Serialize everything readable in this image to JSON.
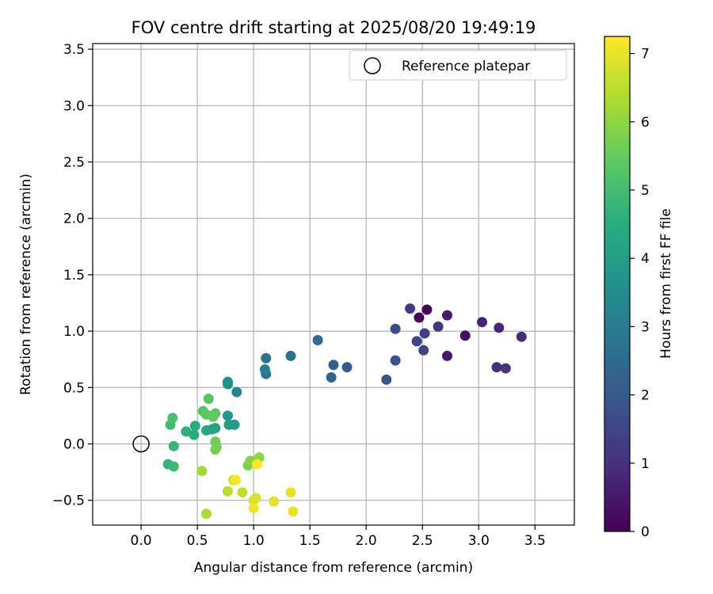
{
  "chart_data": {
    "type": "scatter",
    "title": "FOV centre drift starting at 2025/08/20 19:49:19",
    "xlabel": "Angular distance from reference (arcmin)",
    "ylabel": "Rotation from reference (arcmin)",
    "xlim": [
      -0.43,
      3.85
    ],
    "ylim": [
      -0.72,
      3.55
    ],
    "xticks": [
      "0.0",
      "0.5",
      "1.0",
      "1.5",
      "2.0",
      "2.5",
      "3.0",
      "3.5"
    ],
    "xtick_values": [
      0,
      0.5,
      1.0,
      1.5,
      2.0,
      2.5,
      3.0,
      3.5
    ],
    "yticks": [
      "−0.5",
      "0.0",
      "0.5",
      "1.0",
      "1.5",
      "2.0",
      "2.5",
      "3.0",
      "3.5"
    ],
    "ytick_values": [
      -0.5,
      0,
      0.5,
      1.0,
      1.5,
      2.0,
      2.5,
      3.0,
      3.5
    ],
    "grid": true,
    "legend": {
      "placement": "top-right",
      "entries": [
        "Reference platepar"
      ]
    },
    "reference_point": {
      "x": 0,
      "y": 0
    },
    "colorbar": {
      "label": "Hours from first FF file",
      "min": 0,
      "max": 7.25,
      "ticks": [
        "0",
        "1",
        "2",
        "3",
        "4",
        "5",
        "6",
        "7"
      ],
      "tick_values": [
        0,
        1,
        2,
        3,
        4,
        5,
        6,
        7
      ],
      "colormap": "viridis"
    },
    "points": [
      {
        "x": 2.47,
        "y": 1.12,
        "c": 0.05
      },
      {
        "x": 2.54,
        "y": 1.19,
        "c": 0.15
      },
      {
        "x": 2.88,
        "y": 0.96,
        "c": 0.25
      },
      {
        "x": 2.72,
        "y": 0.78,
        "c": 0.45
      },
      {
        "x": 2.72,
        "y": 1.14,
        "c": 0.55
      },
      {
        "x": 3.03,
        "y": 1.08,
        "c": 0.7
      },
      {
        "x": 3.18,
        "y": 1.03,
        "c": 0.8
      },
      {
        "x": 3.38,
        "y": 0.95,
        "c": 0.9
      },
      {
        "x": 3.16,
        "y": 0.68,
        "c": 1.0
      },
      {
        "x": 3.24,
        "y": 0.67,
        "c": 1.1
      },
      {
        "x": 2.64,
        "y": 1.04,
        "c": 1.15
      },
      {
        "x": 2.39,
        "y": 1.2,
        "c": 1.25
      },
      {
        "x": 2.52,
        "y": 0.98,
        "c": 1.35
      },
      {
        "x": 2.45,
        "y": 0.91,
        "c": 1.45
      },
      {
        "x": 2.51,
        "y": 0.83,
        "c": 1.55
      },
      {
        "x": 2.26,
        "y": 1.02,
        "c": 1.7
      },
      {
        "x": 2.26,
        "y": 0.74,
        "c": 1.8
      },
      {
        "x": 2.18,
        "y": 0.57,
        "c": 1.9
      },
      {
        "x": 1.83,
        "y": 0.68,
        "c": 2.1
      },
      {
        "x": 1.71,
        "y": 0.7,
        "c": 2.2
      },
      {
        "x": 1.69,
        "y": 0.59,
        "c": 2.3
      },
      {
        "x": 1.57,
        "y": 0.92,
        "c": 2.5
      },
      {
        "x": 1.33,
        "y": 0.78,
        "c": 2.6
      },
      {
        "x": 1.11,
        "y": 0.76,
        "c": 2.8
      },
      {
        "x": 1.11,
        "y": 0.62,
        "c": 2.9
      },
      {
        "x": 1.1,
        "y": 0.66,
        "c": 3.0
      },
      {
        "x": 0.85,
        "y": 0.46,
        "c": 3.3
      },
      {
        "x": 0.77,
        "y": 0.55,
        "c": 3.6
      },
      {
        "x": 0.77,
        "y": 0.53,
        "c": 3.7
      },
      {
        "x": 0.77,
        "y": 0.25,
        "c": 3.8
      },
      {
        "x": 0.83,
        "y": 0.17,
        "c": 3.9
      },
      {
        "x": 0.78,
        "y": 0.17,
        "c": 4.0
      },
      {
        "x": 0.66,
        "y": 0.14,
        "c": 4.1
      },
      {
        "x": 0.63,
        "y": 0.13,
        "c": 4.2
      },
      {
        "x": 0.58,
        "y": 0.12,
        "c": 4.3
      },
      {
        "x": 0.48,
        "y": 0.16,
        "c": 4.4
      },
      {
        "x": 0.47,
        "y": 0.08,
        "c": 4.5
      },
      {
        "x": 0.4,
        "y": 0.11,
        "c": 4.6
      },
      {
        "x": 0.24,
        "y": -0.18,
        "c": 4.7
      },
      {
        "x": 0.29,
        "y": -0.02,
        "c": 4.8
      },
      {
        "x": 0.29,
        "y": -0.2,
        "c": 4.9
      },
      {
        "x": 0.26,
        "y": 0.17,
        "c": 5.0
      },
      {
        "x": 0.28,
        "y": 0.23,
        "c": 5.1
      },
      {
        "x": 0.55,
        "y": 0.29,
        "c": 5.2
      },
      {
        "x": 0.6,
        "y": 0.4,
        "c": 5.3
      },
      {
        "x": 0.66,
        "y": 0.27,
        "c": 5.35
      },
      {
        "x": 0.58,
        "y": 0.26,
        "c": 5.4
      },
      {
        "x": 0.64,
        "y": 0.24,
        "c": 5.45
      },
      {
        "x": 0.66,
        "y": 0.02,
        "c": 5.6
      },
      {
        "x": 0.67,
        "y": -0.03,
        "c": 5.65
      },
      {
        "x": 0.66,
        "y": -0.05,
        "c": 5.7
      },
      {
        "x": 0.95,
        "y": -0.19,
        "c": 5.8
      },
      {
        "x": 0.97,
        "y": -0.15,
        "c": 5.9
      },
      {
        "x": 1.05,
        "y": -0.12,
        "c": 6.0
      },
      {
        "x": 0.54,
        "y": -0.24,
        "c": 6.2
      },
      {
        "x": 0.58,
        "y": -0.62,
        "c": 6.3
      },
      {
        "x": 0.77,
        "y": -0.42,
        "c": 6.45
      },
      {
        "x": 0.9,
        "y": -0.43,
        "c": 6.55
      },
      {
        "x": 0.82,
        "y": -0.32,
        "c": 6.7
      },
      {
        "x": 1.0,
        "y": -0.5,
        "c": 6.8
      },
      {
        "x": 1.02,
        "y": -0.48,
        "c": 6.85
      },
      {
        "x": 1.18,
        "y": -0.51,
        "c": 6.9
      },
      {
        "x": 1.33,
        "y": -0.43,
        "c": 6.95
      },
      {
        "x": 1.35,
        "y": -0.6,
        "c": 7.0
      },
      {
        "x": 1.0,
        "y": -0.57,
        "c": 7.1
      },
      {
        "x": 0.84,
        "y": -0.32,
        "c": 7.15
      },
      {
        "x": 1.03,
        "y": -0.18,
        "c": 7.25
      }
    ]
  }
}
